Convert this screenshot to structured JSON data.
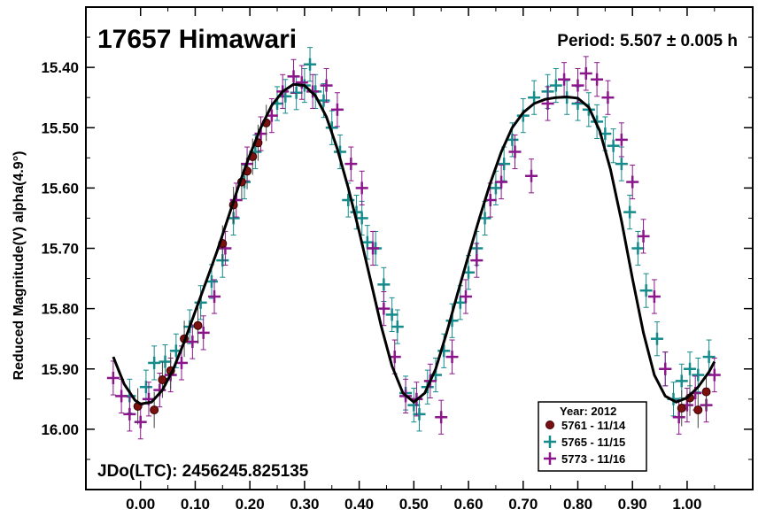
{
  "chart_data": {
    "type": "scatter",
    "title": "17657 Himawari",
    "period_text": "Period: 5.507 ± 0.005 h",
    "jdo_text": "JDo(LTC): 2456245.825135",
    "ylabel": "Reduced Magnitude(V) alpha(4.9°)",
    "xlabel": "",
    "xlim": [
      -0.1,
      1.12
    ],
    "ylim": [
      15.3,
      16.1
    ],
    "y_inverted": true,
    "x_ticks": [
      "0.00",
      "0.10",
      "0.20",
      "0.30",
      "0.40",
      "0.50",
      "0.60",
      "0.70",
      "0.80",
      "0.90",
      "1.00"
    ],
    "x_tick_values": [
      0,
      0.1,
      0.2,
      0.3,
      0.4,
      0.5,
      0.6,
      0.7,
      0.8,
      0.9,
      1.0
    ],
    "y_ticks": [
      "15.40",
      "15.50",
      "15.60",
      "15.70",
      "15.80",
      "15.90",
      "16.00"
    ],
    "y_tick_values": [
      15.4,
      15.5,
      15.6,
      15.7,
      15.8,
      15.9,
      16.0
    ],
    "legend": {
      "title": "Year: 2012",
      "placement": "bottom-right",
      "entries": [
        {
          "label": "5761 - 11/14",
          "color": "#7a1010",
          "marker": "circle"
        },
        {
          "label": "5765 - 11/15",
          "color": "#168b8b",
          "marker": "cross"
        },
        {
          "label": "5773 - 11/16",
          "color": "#8b168b",
          "marker": "cross"
        }
      ]
    },
    "fit_curve": {
      "color": "#000000",
      "points": [
        [
          -0.05,
          15.88
        ],
        [
          -0.03,
          15.925
        ],
        [
          -0.01,
          15.952
        ],
        [
          0.0,
          15.958
        ],
        [
          0.02,
          15.955
        ],
        [
          0.04,
          15.935
        ],
        [
          0.06,
          15.9
        ],
        [
          0.08,
          15.855
        ],
        [
          0.1,
          15.805
        ],
        [
          0.12,
          15.755
        ],
        [
          0.14,
          15.705
        ],
        [
          0.16,
          15.65
        ],
        [
          0.18,
          15.595
        ],
        [
          0.2,
          15.545
        ],
        [
          0.22,
          15.5
        ],
        [
          0.24,
          15.463
        ],
        [
          0.26,
          15.44
        ],
        [
          0.28,
          15.428
        ],
        [
          0.3,
          15.43
        ],
        [
          0.32,
          15.447
        ],
        [
          0.34,
          15.482
        ],
        [
          0.36,
          15.535
        ],
        [
          0.38,
          15.6
        ],
        [
          0.4,
          15.672
        ],
        [
          0.42,
          15.75
        ],
        [
          0.44,
          15.828
        ],
        [
          0.46,
          15.895
        ],
        [
          0.48,
          15.94
        ],
        [
          0.5,
          15.955
        ],
        [
          0.52,
          15.94
        ],
        [
          0.54,
          15.9
        ],
        [
          0.56,
          15.84
        ],
        [
          0.58,
          15.775
        ],
        [
          0.6,
          15.712
        ],
        [
          0.62,
          15.65
        ],
        [
          0.64,
          15.592
        ],
        [
          0.66,
          15.54
        ],
        [
          0.68,
          15.5
        ],
        [
          0.7,
          15.475
        ],
        [
          0.72,
          15.46
        ],
        [
          0.74,
          15.453
        ],
        [
          0.76,
          15.45
        ],
        [
          0.78,
          15.449
        ],
        [
          0.8,
          15.451
        ],
        [
          0.82,
          15.466
        ],
        [
          0.84,
          15.505
        ],
        [
          0.86,
          15.57
        ],
        [
          0.88,
          15.655
        ],
        [
          0.9,
          15.75
        ],
        [
          0.92,
          15.84
        ],
        [
          0.94,
          15.91
        ],
        [
          0.96,
          15.945
        ],
        [
          0.98,
          15.955
        ],
        [
          1.0,
          15.948
        ],
        [
          1.02,
          15.93
        ],
        [
          1.04,
          15.905
        ],
        [
          1.05,
          15.888
        ]
      ]
    },
    "series": [
      {
        "name": "5761 - 11/14",
        "color": "#7a1010",
        "marker": "circle",
        "points": [
          [
            -0.005,
            15.962
          ],
          [
            0.025,
            15.968
          ],
          [
            0.04,
            15.918
          ],
          [
            0.055,
            15.903
          ],
          [
            0.08,
            15.85
          ],
          [
            0.105,
            15.828
          ],
          [
            0.15,
            15.692
          ],
          [
            0.17,
            15.628
          ],
          [
            0.185,
            15.59
          ],
          [
            0.195,
            15.572
          ],
          [
            0.205,
            15.548
          ],
          [
            0.215,
            15.525
          ],
          [
            0.23,
            15.492
          ],
          [
            0.99,
            15.965
          ],
          [
            1.005,
            15.948
          ],
          [
            1.02,
            15.968
          ],
          [
            1.035,
            15.938
          ]
        ]
      },
      {
        "name": "5765 - 11/15",
        "color": "#168b8b",
        "marker": "cross",
        "points": [
          [
            -0.02,
            15.945
          ],
          [
            0.01,
            15.93
          ],
          [
            0.025,
            15.89
          ],
          [
            0.045,
            15.888
          ],
          [
            0.065,
            15.87
          ],
          [
            0.09,
            15.83
          ],
          [
            0.11,
            15.79
          ],
          [
            0.13,
            15.755
          ],
          [
            0.15,
            15.72
          ],
          [
            0.17,
            15.65
          ],
          [
            0.19,
            15.59
          ],
          [
            0.21,
            15.54
          ],
          [
            0.25,
            15.46
          ],
          [
            0.265,
            15.448
          ],
          [
            0.285,
            15.442
          ],
          [
            0.3,
            15.43
          ],
          [
            0.31,
            15.395
          ],
          [
            0.32,
            15.44
          ],
          [
            0.335,
            15.455
          ],
          [
            0.35,
            15.5
          ],
          [
            0.365,
            15.54
          ],
          [
            0.38,
            15.62
          ],
          [
            0.395,
            15.64
          ],
          [
            0.405,
            15.65
          ],
          [
            0.415,
            15.69
          ],
          [
            0.43,
            15.7
          ],
          [
            0.445,
            15.76
          ],
          [
            0.46,
            15.81
          ],
          [
            0.47,
            15.83
          ],
          [
            0.485,
            15.94
          ],
          [
            0.5,
            15.96
          ],
          [
            0.51,
            15.975
          ],
          [
            0.525,
            15.93
          ],
          [
            0.54,
            15.91
          ],
          [
            0.555,
            15.87
          ],
          [
            0.57,
            15.82
          ],
          [
            0.585,
            15.79
          ],
          [
            0.6,
            15.74
          ],
          [
            0.615,
            15.7
          ],
          [
            0.63,
            15.65
          ],
          [
            0.65,
            15.6
          ],
          [
            0.665,
            15.56
          ],
          [
            0.68,
            15.52
          ],
          [
            0.7,
            15.48
          ],
          [
            0.72,
            15.45
          ],
          [
            0.745,
            15.44
          ],
          [
            0.76,
            15.43
          ],
          [
            0.78,
            15.45
          ],
          [
            0.8,
            15.46
          ],
          [
            0.82,
            15.47
          ],
          [
            0.835,
            15.49
          ],
          [
            0.85,
            15.51
          ],
          [
            0.865,
            15.53
          ],
          [
            0.88,
            15.56
          ],
          [
            0.895,
            15.64
          ],
          [
            0.91,
            15.7
          ],
          [
            0.925,
            15.77
          ],
          [
            0.945,
            15.85
          ],
          [
            0.96,
            15.9
          ],
          [
            0.975,
            15.95
          ],
          [
            0.99,
            15.92
          ],
          [
            1.005,
            15.9
          ],
          [
            1.02,
            15.91
          ],
          [
            1.04,
            15.88
          ]
        ]
      },
      {
        "name": "5773 - 11/16",
        "color": "#8b168b",
        "marker": "cross",
        "points": [
          [
            -0.05,
            15.915
          ],
          [
            -0.035,
            15.945
          ],
          [
            -0.02,
            15.975
          ],
          [
            0.0,
            15.988
          ],
          [
            0.015,
            15.95
          ],
          [
            0.035,
            15.935
          ],
          [
            0.055,
            15.91
          ],
          [
            0.075,
            15.89
          ],
          [
            0.095,
            15.855
          ],
          [
            0.115,
            15.84
          ],
          [
            0.135,
            15.78
          ],
          [
            0.155,
            15.7
          ],
          [
            0.175,
            15.62
          ],
          [
            0.195,
            15.56
          ],
          [
            0.22,
            15.51
          ],
          [
            0.24,
            15.48
          ],
          [
            0.26,
            15.44
          ],
          [
            0.28,
            15.415
          ],
          [
            0.295,
            15.425
          ],
          [
            0.315,
            15.44
          ],
          [
            0.34,
            15.43
          ],
          [
            0.36,
            15.47
          ],
          [
            0.385,
            15.56
          ],
          [
            0.405,
            15.6
          ],
          [
            0.425,
            15.7
          ],
          [
            0.445,
            15.8
          ],
          [
            0.465,
            15.88
          ],
          [
            0.485,
            15.945
          ],
          [
            0.505,
            15.95
          ],
          [
            0.53,
            15.92
          ],
          [
            0.55,
            15.98
          ],
          [
            0.57,
            15.88
          ],
          [
            0.595,
            15.78
          ],
          [
            0.615,
            15.72
          ],
          [
            0.64,
            15.62
          ],
          [
            0.66,
            15.59
          ],
          [
            0.685,
            15.54
          ],
          [
            0.715,
            15.58
          ],
          [
            0.745,
            15.46
          ],
          [
            0.775,
            15.42
          ],
          [
            0.8,
            15.43
          ],
          [
            0.815,
            15.41
          ],
          [
            0.835,
            15.42
          ],
          [
            0.855,
            15.45
          ],
          [
            0.88,
            15.52
          ],
          [
            0.9,
            15.59
          ],
          [
            0.92,
            15.68
          ],
          [
            0.94,
            15.78
          ],
          [
            0.96,
            15.9
          ],
          [
            0.985,
            15.98
          ],
          [
            1.0,
            15.96
          ],
          [
            1.015,
            15.94
          ],
          [
            1.035,
            15.96
          ],
          [
            1.05,
            15.91
          ]
        ]
      }
    ]
  }
}
